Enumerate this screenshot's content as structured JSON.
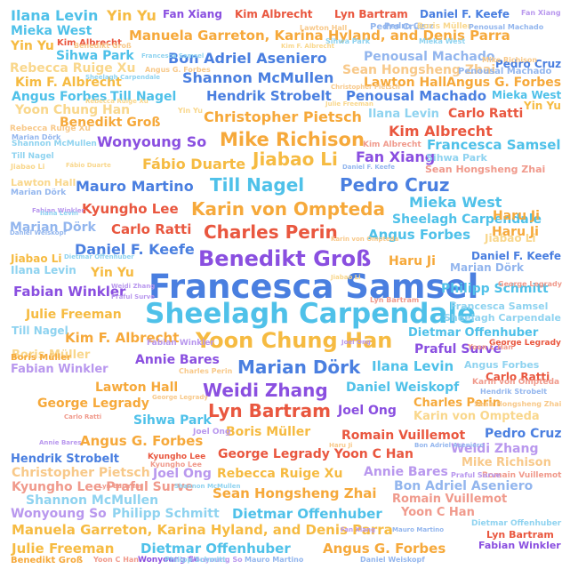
{
  "cloud": {
    "palette": {
      "sky": "#4FC1E9",
      "blue": "#4A7FE0",
      "red": "#E9573F",
      "orange": "#F6A93B",
      "purple": "#8A4FE0",
      "gold": "#F6BB42",
      "light_sky": "#8FD3F0",
      "light_blue": "#93B6EE",
      "light_red": "#F09A8C",
      "light_orange": "#F8C98A",
      "light_purple": "#B998EE",
      "light_gold": "#F9D78C"
    },
    "words": [
      {
        "text": "Francesca Samsel",
        "color": "blue"
      },
      {
        "text": "Sheelagh Carpendale",
        "color": "sky"
      },
      {
        "text": "Benedikt Groß",
        "color": "purple"
      },
      {
        "text": "Yoon Chung Han",
        "color": "gold"
      },
      {
        "text": "Mike Richison",
        "color": "orange"
      },
      {
        "text": "Karin von Ompteda",
        "color": "orange"
      },
      {
        "text": "Charles Perin",
        "color": "red"
      },
      {
        "text": "Till Nagel",
        "color": "sky"
      },
      {
        "text": "Pedro Cruz",
        "color": "blue"
      },
      {
        "text": "Jiabao Li",
        "color": "gold"
      },
      {
        "text": "Marian Dörk",
        "color": "blue"
      },
      {
        "text": "Weidi Zhang",
        "color": "purple"
      },
      {
        "text": "Lyn Bartram",
        "color": "red"
      },
      {
        "text": "Manuela Garreton, Karina Hyland, and Denis Parra",
        "color": "orange"
      },
      {
        "text": "Manuela Garreton, Karina Hyland, and Denis Parra",
        "color": "gold"
      },
      {
        "text": "Wonyoung So",
        "color": "purple"
      },
      {
        "text": "Fábio Duarte",
        "color": "gold"
      },
      {
        "text": "Mauro Martino",
        "color": "blue"
      },
      {
        "text": "Shannon McMullen",
        "color": "blue"
      },
      {
        "text": "Bon Adriel Aseniero",
        "color": "blue"
      },
      {
        "text": "Hendrik Strobelt",
        "color": "blue"
      },
      {
        "text": "Penousal Machado",
        "color": "blue"
      },
      {
        "text": "Christopher Pietsch",
        "color": "orange"
      },
      {
        "text": "Kim Albrecht",
        "color": "red"
      },
      {
        "text": "Francesca Samsel",
        "color": "sky"
      },
      {
        "text": "Fan Xiang",
        "color": "purple"
      },
      {
        "text": "Mieka West",
        "color": "sky"
      },
      {
        "text": "Kyungho Lee",
        "color": "red"
      },
      {
        "text": "Carlo Ratti",
        "color": "red"
      },
      {
        "text": "Sheelagh Carpendale",
        "color": "sky"
      },
      {
        "text": "Angus Forbes",
        "color": "sky"
      },
      {
        "text": "Daniel F. Keefe",
        "color": "blue"
      },
      {
        "text": "Fabian Winkler",
        "color": "purple"
      },
      {
        "text": "Philipp Schmitt",
        "color": "sky"
      },
      {
        "text": "Julie Freeman",
        "color": "gold"
      },
      {
        "text": "Kim F. Albrecht",
        "color": "orange"
      },
      {
        "text": "Dietmar Offenhuber",
        "color": "sky"
      },
      {
        "text": "Praful Surve",
        "color": "purple"
      },
      {
        "text": "Annie Bares",
        "color": "purple"
      },
      {
        "text": "Ilana Levin",
        "color": "sky"
      },
      {
        "text": "Daniel Weiskopf",
        "color": "sky"
      },
      {
        "text": "Lawton Hall",
        "color": "orange"
      },
      {
        "text": "George Legrady",
        "color": "orange"
      },
      {
        "text": "Sihwa Park",
        "color": "sky"
      },
      {
        "text": "Joel Ong",
        "color": "purple"
      },
      {
        "text": "Charles Perin",
        "color": "orange"
      },
      {
        "text": "Karin von Ompteda",
        "color": "light_gold"
      },
      {
        "text": "Boris Müller",
        "color": "gold"
      },
      {
        "text": "Romain Vuillemot",
        "color": "red"
      },
      {
        "text": "Angus G. Forbes",
        "color": "orange"
      },
      {
        "text": "George Legrady Yoon C Han",
        "color": "red"
      },
      {
        "text": "Weidi Zhang",
        "color": "light_purple"
      },
      {
        "text": "Mike Richison",
        "color": "light_orange"
      },
      {
        "text": "Christopher Pietsch",
        "color": "light_orange"
      },
      {
        "text": "Joel Ong",
        "color": "light_purple"
      },
      {
        "text": "Rebecca Ruige Xu",
        "color": "gold"
      },
      {
        "text": "Annie Bares",
        "color": "light_purple"
      },
      {
        "text": "Kyungho Lee Praful Surve",
        "color": "light_red"
      },
      {
        "text": "Bon Adriel Aseniero",
        "color": "light_blue"
      },
      {
        "text": "Sean Hongsheng Zhai",
        "color": "orange"
      },
      {
        "text": "Shannon McMullen",
        "color": "light_sky"
      },
      {
        "text": "Romain Vuillemot",
        "color": "light_red"
      },
      {
        "text": "Wonyoung So",
        "color": "light_purple"
      },
      {
        "text": "Philipp Schmitt",
        "color": "light_sky"
      },
      {
        "text": "Dietmar Offenhuber",
        "color": "sky"
      },
      {
        "text": "Yoon C Han",
        "color": "light_red"
      },
      {
        "text": "Julie Freeman",
        "color": "gold"
      },
      {
        "text": "Dietmar Offenhuber",
        "color": "sky"
      },
      {
        "text": "Angus G. Forbes",
        "color": "orange"
      },
      {
        "text": "Ilana Levin",
        "color": "sky"
      },
      {
        "text": "Yin Yu",
        "color": "gold"
      },
      {
        "text": "Fan Xiang",
        "color": "purple"
      },
      {
        "text": "Kim Albrecht",
        "color": "red"
      },
      {
        "text": "Lyn Bartram",
        "color": "red"
      },
      {
        "text": "Daniel F. Keefe",
        "color": "blue"
      },
      {
        "text": "Mieka West",
        "color": "sky"
      },
      {
        "text": "Yin Yu",
        "color": "gold"
      },
      {
        "text": "Kim Albrecht",
        "color": "red"
      },
      {
        "text": "Sihwa Park",
        "color": "sky"
      },
      {
        "text": "Rebecca Ruige Xu",
        "color": "light_gold"
      },
      {
        "text": "Kim F. Albrecht",
        "color": "gold"
      },
      {
        "text": "Angus Forbes",
        "color": "sky"
      },
      {
        "text": "Till Nagel",
        "color": "sky"
      },
      {
        "text": "Yoon Chung Han",
        "color": "light_gold"
      },
      {
        "text": "Benedikt Groß",
        "color": "orange"
      },
      {
        "text": "Pedro Cruz",
        "color": "light_blue"
      },
      {
        "text": "Penousal Machado",
        "color": "light_blue"
      },
      {
        "text": "Sean Hongsheng Zhai",
        "color": "light_orange"
      },
      {
        "text": "Pedro Cruz",
        "color": "blue"
      },
      {
        "text": "Lawton Hall",
        "color": "orange"
      },
      {
        "text": "Angus G. Forbes",
        "color": "orange"
      },
      {
        "text": "Mieka West",
        "color": "sky"
      },
      {
        "text": "Yin Yu",
        "color": "gold"
      },
      {
        "text": "Ilana Levin",
        "color": "light_sky"
      },
      {
        "text": "Carlo Ratti",
        "color": "red"
      },
      {
        "text": "Haru Ji",
        "color": "orange"
      },
      {
        "text": "Marian Dörk",
        "color": "light_blue"
      },
      {
        "text": "Jiabao Li",
        "color": "gold"
      },
      {
        "text": "Ilana Levin",
        "color": "light_sky"
      },
      {
        "text": "Yin Yu",
        "color": "gold"
      },
      {
        "text": "Haru Ji",
        "color": "orange"
      },
      {
        "text": "Marian Dörk",
        "color": "light_blue"
      },
      {
        "text": "Daniel F. Keefe",
        "color": "blue"
      },
      {
        "text": "Boris Müller",
        "color": "light_gold"
      },
      {
        "text": "Fabian Winkler",
        "color": "light_purple"
      },
      {
        "text": "Till Nagel",
        "color": "light_sky"
      },
      {
        "text": "Haru Ji",
        "color": "orange"
      },
      {
        "text": "Francesca Samsel",
        "color": "light_sky"
      },
      {
        "text": "Sheelagh Carpendale",
        "color": "light_sky"
      },
      {
        "text": "George Legrady",
        "color": "red"
      },
      {
        "text": "Angus Forbes",
        "color": "light_sky"
      },
      {
        "text": "Carlo Ratti",
        "color": "red"
      },
      {
        "text": "Jiabao Li",
        "color": "light_gold"
      },
      {
        "text": "Sihwa Park",
        "color": "light_sky"
      },
      {
        "text": "Sean Hongsheng Zhai",
        "color": "light_red"
      },
      {
        "text": "Penousal Machado",
        "color": "light_blue"
      },
      {
        "text": "Lawton Hall",
        "color": "light_gold"
      },
      {
        "text": "Marian Dörk",
        "color": "light_blue"
      },
      {
        "text": "Hendrik Strobelt",
        "color": "blue"
      },
      {
        "text": "Kyungho Lee",
        "color": "red"
      },
      {
        "text": "Wonyoung So",
        "color": "purple"
      },
      {
        "text": "Lyn Bartram",
        "color": "red"
      },
      {
        "text": "Fabian Winkler",
        "color": "purple"
      },
      {
        "text": "Benedikt Groß",
        "color": "orange"
      },
      {
        "text": "Pedro Cruz",
        "color": "blue"
      },
      {
        "text": "Boris Müller",
        "color": "orange"
      },
      {
        "text": "Joel Ong",
        "color": "light_purple"
      },
      {
        "text": "Karin von Ompteda",
        "color": "light_red"
      },
      {
        "text": "Fabian Winkler",
        "color": "light_purple"
      },
      {
        "text": "Romain Vuillemot",
        "color": "light_red"
      },
      {
        "text": "Rebecca Ruige Xu",
        "color": "light_orange"
      },
      {
        "text": "Shannon McMullen",
        "color": "light_sky"
      },
      {
        "text": "Fan Xiang",
        "color": "light_purple"
      },
      {
        "text": "Jiabao Li",
        "color": "light_gold"
      },
      {
        "text": "Lyn Bartram",
        "color": "light_red"
      },
      {
        "text": "Dietmar Offenhuber",
        "color": "light_sky"
      },
      {
        "text": "Yoon C Han",
        "color": "light_red"
      },
      {
        "text": "Wonyoung So",
        "color": "light_purple"
      },
      {
        "text": "Philipp Schmitt",
        "color": "light_sky"
      },
      {
        "text": "Mauro Martino",
        "color": "light_blue"
      },
      {
        "text": "Daniel Weiskopf",
        "color": "light_blue"
      },
      {
        "text": "Kim Albrecht",
        "color": "light_red"
      },
      {
        "text": "Fabian Winkler",
        "color": "light_purple"
      },
      {
        "text": "Charles Perin",
        "color": "light_orange"
      },
      {
        "text": "Annie Bares",
        "color": "light_purple"
      },
      {
        "text": "Daniel F. Keefe",
        "color": "light_blue"
      },
      {
        "text": "Praful Surve",
        "color": "light_purple"
      },
      {
        "text": "Hendrik Strobelt",
        "color": "light_blue"
      },
      {
        "text": "Kyungho Lee",
        "color": "light_red"
      },
      {
        "text": "Yoon C Han",
        "color": "light_red"
      },
      {
        "text": "Sean Hongsheng Zhai",
        "color": "light_orange"
      },
      {
        "text": "Marian Dörk",
        "color": "light_blue"
      },
      {
        "text": "Mieka West",
        "color": "light_sky"
      },
      {
        "text": "Pedro Cruz",
        "color": "light_blue"
      },
      {
        "text": "Boris Müller",
        "color": "light_gold"
      },
      {
        "text": "Mike Richison",
        "color": "light_orange"
      },
      {
        "text": "Christopher Pietsch",
        "color": "light_orange"
      },
      {
        "text": "Julie Freeman",
        "color": "light_gold"
      },
      {
        "text": "Till Nagel",
        "color": "light_sky"
      },
      {
        "text": "George Legrady",
        "color": "light_red"
      },
      {
        "text": "Penousal Machado",
        "color": "light_blue"
      },
      {
        "text": "Benedikt Groß",
        "color": "light_orange"
      },
      {
        "text": "Angus G. Forbes",
        "color": "light_orange"
      },
      {
        "text": "Yin Yu",
        "color": "light_gold"
      },
      {
        "text": "Sihwa Park",
        "color": "light_sky"
      },
      {
        "text": "Kim F. Albrecht",
        "color": "light_gold"
      },
      {
        "text": "Lawton Hall",
        "color": "light_orange"
      },
      {
        "text": "Rebecca Ruige Xu",
        "color": "light_gold"
      },
      {
        "text": "Ilana Levin",
        "color": "light_sky"
      },
      {
        "text": "Francesca Samsel",
        "color": "light_sky"
      },
      {
        "text": "Sheelagh Carpendale",
        "color": "light_sky"
      },
      {
        "text": "Weidi Zhang",
        "color": "light_purple"
      },
      {
        "text": "Praful Surve",
        "color": "light_purple"
      },
      {
        "text": "George Legrady",
        "color": "light_orange"
      },
      {
        "text": "Joel Ong",
        "color": "light_purple"
      },
      {
        "text": "Carlo Ratti",
        "color": "light_red"
      },
      {
        "text": "Haru Ji",
        "color": "light_orange"
      },
      {
        "text": "Bon Adriel Aseniero",
        "color": "light_blue"
      },
      {
        "text": "Shannon McMullen",
        "color": "light_sky"
      },
      {
        "text": "Lyn Bartram",
        "color": "light_red"
      },
      {
        "text": "Fan Xiang",
        "color": "light_purple"
      },
      {
        "text": "Mauro Martino",
        "color": "light_blue"
      },
      {
        "text": "Daniel Weiskopf",
        "color": "light_blue"
      },
      {
        "text": "Karin von Ompteda",
        "color": "light_orange"
      },
      {
        "text": "Dietmar Offenhuber",
        "color": "light_sky"
      },
      {
        "text": "Jiabao Li",
        "color": "light_gold"
      },
      {
        "text": "Fábio Duarte",
        "color": "light_gold"
      }
    ]
  }
}
